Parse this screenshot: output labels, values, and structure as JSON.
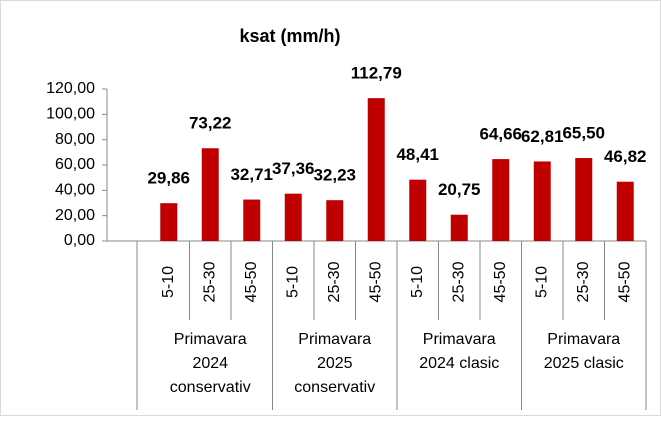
{
  "chart_data": {
    "type": "bar",
    "title": "ksat (mm/h)",
    "categories": [
      "5-10",
      "25-30",
      "45-50",
      "5-10",
      "25-30",
      "45-50",
      "5-10",
      "25-30",
      "45-50",
      "5-10",
      "25-30",
      "45-50"
    ],
    "groups": [
      [
        "Primavara",
        "2024",
        "conservativ"
      ],
      [
        "Primavara",
        "2025",
        "conservativ"
      ],
      [
        "Primavara",
        "2024 clasic"
      ],
      [
        "Primavara",
        "2025 clasic"
      ]
    ],
    "values": [
      29.86,
      73.22,
      32.71,
      37.36,
      32.23,
      112.79,
      48.41,
      20.75,
      64.66,
      62.81,
      65.5,
      46.82
    ],
    "value_labels": [
      "29,86",
      "73,22",
      "32,71",
      "37,36",
      "32,23",
      "112,79",
      "48,41",
      "20,75",
      "64,66",
      "62,81",
      "65,50",
      "46,82"
    ],
    "color": "#c00000",
    "ylim": [
      0,
      120
    ],
    "yticks": [
      {
        "value": 0,
        "label": "0,00"
      },
      {
        "value": 20,
        "label": "20,00"
      },
      {
        "value": 40,
        "label": "40,00"
      },
      {
        "value": 60,
        "label": "60,00"
      },
      {
        "value": 80,
        "label": "80,00"
      },
      {
        "value": 100,
        "label": "100,00"
      },
      {
        "value": 120,
        "label": "120,00"
      }
    ],
    "grid": false
  }
}
